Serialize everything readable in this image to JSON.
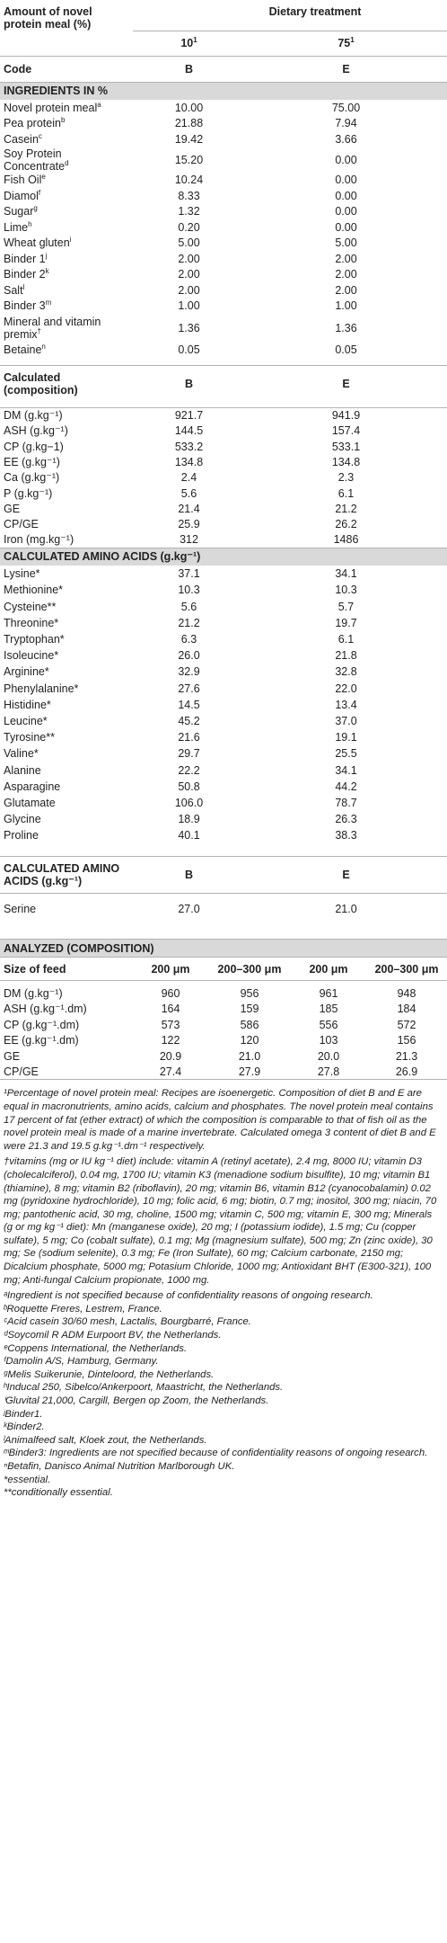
{
  "header": {
    "amount_label": "Amount of novel protein meal (%)",
    "dietary_treatment": "Dietary treatment",
    "amount_b": "10",
    "amount_b_sup": "1",
    "amount_e": "75",
    "amount_e_sup": "1",
    "code_label": "Code",
    "code_b": "B",
    "code_e": "E"
  },
  "ingredients": {
    "heading": "INGREDIENTS IN %",
    "rows": [
      {
        "name": "Novel protein meal",
        "sup": "a",
        "b": "10.00",
        "e": "75.00"
      },
      {
        "name": "Pea protein",
        "sup": "b",
        "b": "21.88",
        "e": "7.94"
      },
      {
        "name": "Casein",
        "sup": "c",
        "b": "19.42",
        "e": "3.66"
      },
      {
        "name": "Soy Protein Concentrate",
        "sup": "d",
        "b": "15.20",
        "e": "0.00"
      },
      {
        "name": "Fish Oil",
        "sup": "e",
        "b": "10.24",
        "e": "0.00"
      },
      {
        "name": "Diamol",
        "sup": "f",
        "b": "8.33",
        "e": "0.00"
      },
      {
        "name": "Sugar",
        "sup": "g",
        "b": "1.32",
        "e": "0.00"
      },
      {
        "name": "Lime",
        "sup": "h",
        "b": "0.20",
        "e": "0.00"
      },
      {
        "name": "Wheat gluten",
        "sup": "i",
        "b": "5.00",
        "e": "5.00"
      },
      {
        "name": "Binder 1",
        "sup": "j",
        "b": "2.00",
        "e": "2.00"
      },
      {
        "name": "Binder 2",
        "sup": "k",
        "b": "2.00",
        "e": "2.00"
      },
      {
        "name": "Salt",
        "sup": "l",
        "b": "2.00",
        "e": "2.00"
      },
      {
        "name": "Binder 3",
        "sup": "m",
        "b": "1.00",
        "e": "1.00"
      },
      {
        "name": "Mineral and vitamin premix",
        "sup": "†",
        "b": "1.36",
        "e": "1.36"
      },
      {
        "name": "Betaine",
        "sup": "n",
        "b": "0.05",
        "e": "0.05"
      }
    ]
  },
  "calculated": {
    "heading": "Calculated (composition)",
    "col_b": "B",
    "col_e": "E",
    "rows": [
      {
        "name": "DM (g.kg⁻¹)",
        "b": "921.7",
        "e": "941.9"
      },
      {
        "name": "ASH (g.kg⁻¹)",
        "b": "144.5",
        "e": "157.4"
      },
      {
        "name": "CP (g.kg−1)",
        "b": "533.2",
        "e": "533.1"
      },
      {
        "name": "EE (g.kg⁻¹)",
        "b": "134.8",
        "e": "134.8"
      },
      {
        "name": "Ca (g.kg⁻¹)",
        "b": "2.4",
        "e": "2.3"
      },
      {
        "name": "P (g.kg⁻¹)",
        "b": "5.6",
        "e": "6.1"
      },
      {
        "name": "GE",
        "b": "21.4",
        "e": "21.2"
      },
      {
        "name": "CP/GE",
        "b": "25.9",
        "e": "26.2"
      },
      {
        "name": "Iron (mg.kg⁻¹)",
        "b": "312",
        "e": "1486"
      }
    ]
  },
  "amino": {
    "heading": "CALCULATED AMINO ACIDS (g.kg⁻¹)",
    "rows": [
      {
        "name": "Lysine*",
        "b": "37.1",
        "e": "34.1"
      },
      {
        "name": "Methionine*",
        "b": "10.3",
        "e": "10.3"
      },
      {
        "name": "Cysteine**",
        "b": "5.6",
        "e": "5.7"
      },
      {
        "name": "Threonine*",
        "b": "21.2",
        "e": "19.7"
      },
      {
        "name": "Tryptophan*",
        "b": "6.3",
        "e": "6.1"
      },
      {
        "name": "Isoleucine*",
        "b": "26.0",
        "e": "21.8"
      },
      {
        "name": "Arginine*",
        "b": "32.9",
        "e": "32.8"
      },
      {
        "name": "Phenylalanine*",
        "b": "27.6",
        "e": "22.0"
      },
      {
        "name": "Histidine*",
        "b": "14.5",
        "e": "13.4"
      },
      {
        "name": "Leucine*",
        "b": "45.2",
        "e": "37.0"
      },
      {
        "name": "Tyrosine**",
        "b": "21.6",
        "e": "19.1"
      },
      {
        "name": "Valine*",
        "b": "29.7",
        "e": "25.5"
      },
      {
        "name": "Alanine",
        "b": "22.2",
        "e": "34.1"
      },
      {
        "name": "Asparagine",
        "b": "50.8",
        "e": "44.2"
      },
      {
        "name": "Glutamate",
        "b": "106.0",
        "e": "78.7"
      },
      {
        "name": "Glycine",
        "b": "18.9",
        "e": "26.3"
      },
      {
        "name": "Proline",
        "b": "40.1",
        "e": "38.3"
      }
    ]
  },
  "amino2": {
    "heading": "CALCULATED AMINO ACIDS (g.kg⁻¹)",
    "col_b": "B",
    "col_e": "E",
    "rows": [
      {
        "name": "Serine",
        "b": "27.0",
        "e": "21.0"
      }
    ]
  },
  "analyzed": {
    "heading": "ANALYZED (COMPOSITION)",
    "size_label": "Size of feed",
    "cols": [
      "200 μm",
      "200–300 μm",
      "200 μm",
      "200–300 μm"
    ],
    "rows": [
      {
        "name": "DM (g.kg⁻¹)",
        "v": [
          "960",
          "956",
          "961",
          "948"
        ]
      },
      {
        "name": "ASH (g.kg⁻¹.dm)",
        "v": [
          "164",
          "159",
          "185",
          "184"
        ]
      },
      {
        "name": "CP (g.kg⁻¹.dm)",
        "v": [
          "573",
          "586",
          "556",
          "572"
        ]
      },
      {
        "name": "EE (g.kg⁻¹.dm)",
        "v": [
          "122",
          "120",
          "103",
          "156"
        ]
      },
      {
        "name": "GE",
        "v": [
          "20.9",
          "21.0",
          "20.0",
          "21.3"
        ]
      },
      {
        "name": "CP/GE",
        "v": [
          "27.4",
          "27.9",
          "27.8",
          "26.9"
        ]
      }
    ]
  },
  "footnotes": [
    "¹Percentage of novel protein meal: Recipes are isoenergetic. Composition of diet B and E are equal in macronutrients, amino acids, calcium and phosphates. The novel protein meal contains 17 percent of fat (ether extract) of which the composition is comparable to that of fish oil as the novel protein meal is made of a marine invertebrate. Calculated omega 3 content of diet B and E were 21.3 and 19.5 g.kg⁻¹.dm⁻¹ respectively.",
    "†vitamins (mg or IU kg⁻¹ diet) include: vitamin A (retinyl acetate), 2.4 mg, 8000 IU; vitamin D3 (cholecalciferol), 0.04 mg, 1700 IU; vitamin K3 (menadione sodium bisulfite), 10 mg; vitamin B1 (thiamine), 8 mg; vitamin B2 (riboflavin), 20 mg; vitamin B6, vitamin B12 (cyanocobalamin) 0.02 mg (pyridoxine hydrochloride), 10 mg; folic acid, 6 mg; biotin, 0.7 mg; inositol, 300 mg; niacin, 70 mg; pantothenic acid, 30 mg, choline, 1500 mg; vitamin C, 500 mg; vitamin E, 300 mg; Minerals (g or mg kg⁻¹ diet): Mn (manganese oxide), 20 mg; I (potassium iodide), 1.5 mg; Cu (copper sulfate), 5 mg; Co (cobalt sulfate), 0.1 mg; Mg (magnesium sulfate), 500 mg; Zn (zinc oxide), 30 mg; Se (sodium selenite), 0.3 mg; Fe (Iron Sulfate), 60 mg; Calcium carbonate, 2150 mg; Dicalcium phosphate, 5000 mg; Potasium Chloride, 1000 mg; Antioxidant BHT (E300-321), 100 mg; Anti-fungal Calcium propionate, 1000 mg.",
    "ᵃIngredient is not specified because of confidentiality reasons of ongoing research.",
    "ᵇRoquette Freres, Lestrem, France.",
    "ᶜAcid casein 30/60 mesh, Lactalis, Bourgbarré, France.",
    "ᵈSoycomil R ADM Eurpoort BV, the Netherlands.",
    "ᵉCoppens International, the Netherlands.",
    "ᶠDamolin A/S, Hamburg, Germany.",
    "ᵍMelis Suikerunie, Dinteloord, the Netherlands.",
    "ʰInducal 250, Sibelco/Ankerpoort, Maastricht, the Netherlands.",
    "ⁱGluvital 21,000, Cargill, Bergen op Zoom, the Netherlands.",
    "ʲBinder1.",
    "ᵏBinder2.",
    "ˡAnimalfeed salt, Kloek zout, the Netherlands.",
    "ᵐBinder3: Ingredients are not specified because of confidentiality reasons of ongoing research.",
    "ⁿBetafin, Danisco Animal Nutrition Marlborough UK.",
    "*essential.",
    "**conditionally essential."
  ]
}
